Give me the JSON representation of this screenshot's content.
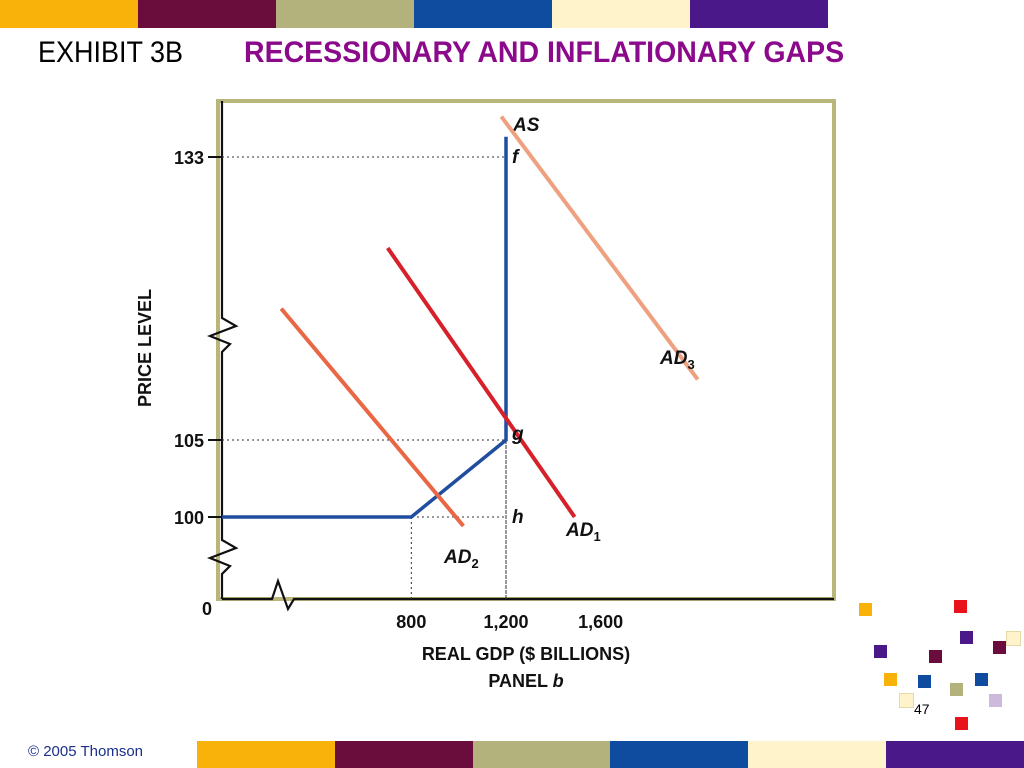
{
  "slide": {
    "title_prefix": "EXHIBIT 3B",
    "title_main": "RECESSIONARY AND INFLATIONARY GAPS",
    "copyright": "© 2005 Thomson",
    "page_number": "47"
  },
  "colors": {
    "bar_palette": [
      "#f9b20a",
      "#6b0d3c",
      "#b4b27c",
      "#0f4ca0",
      "#fff3cc",
      "#4a1888"
    ],
    "title_accent": "#8b0a8b",
    "as_curve": "#1f4e9e",
    "ad1": "#d6202a",
    "ad2": "#ea6745",
    "ad3": "#eea07f",
    "frame": "#b8b67a"
  },
  "chart_data": {
    "type": "line",
    "xlabel": "REAL GDP ($ BILLIONS)",
    "ylabel": "PRICE LEVEL",
    "panel_label": "PANEL",
    "panel_letter": "b",
    "origin_label": "0",
    "x_ticks": [
      800,
      1200,
      1600
    ],
    "x_tick_labels": [
      "800",
      "1,200",
      "1,600"
    ],
    "y_ticks": [
      100,
      105,
      133
    ],
    "y_tick_labels": [
      "100",
      "105",
      "133"
    ],
    "axis_breaks": true,
    "series": [
      {
        "name": "AS",
        "sub": "",
        "points": [
          [
            0,
            100
          ],
          [
            800,
            100
          ],
          [
            1200,
            105
          ],
          [
            1200,
            135
          ]
        ]
      },
      {
        "name": "AD",
        "sub": "1",
        "points": [
          [
            700,
            124
          ],
          [
            1490,
            100
          ]
        ]
      },
      {
        "name": "AD",
        "sub": "2",
        "points": [
          [
            250,
            118
          ],
          [
            1020,
            99
          ]
        ]
      },
      {
        "name": "AD",
        "sub": "3",
        "points": [
          [
            1180,
            137
          ],
          [
            2010,
            111
          ]
        ]
      }
    ],
    "points": [
      {
        "label": "f",
        "x": 1200,
        "y": 133
      },
      {
        "label": "g",
        "x": 1200,
        "y": 105
      },
      {
        "label": "h",
        "x": 1200,
        "y": 100
      }
    ],
    "guides": [
      {
        "x": 1200,
        "y": 133
      },
      {
        "x": 1200,
        "y": 105
      },
      {
        "x": 1200,
        "y": 100
      },
      {
        "x": 800,
        "y": 100
      }
    ]
  }
}
